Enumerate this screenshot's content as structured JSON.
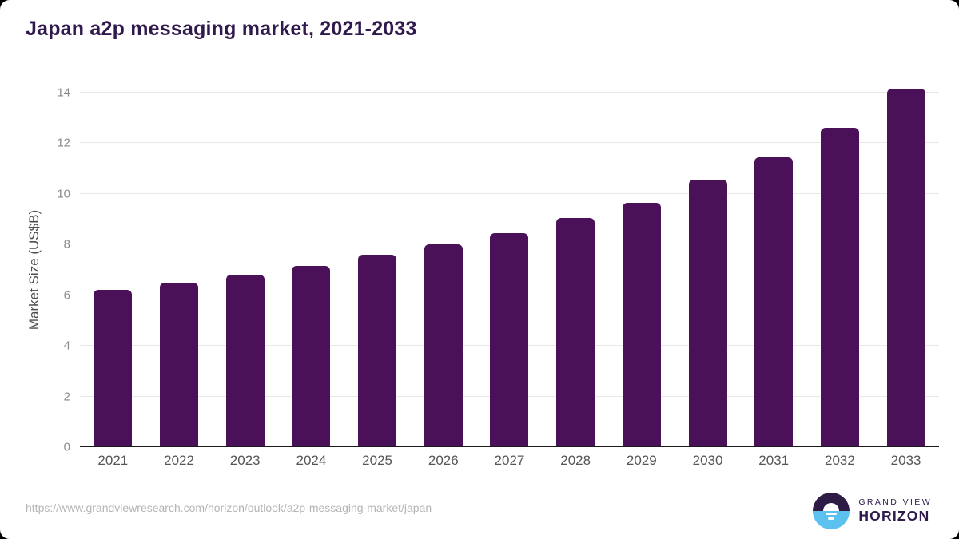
{
  "page": {
    "title": "Japan a2p messaging market, 2021-2033",
    "source_url": "https://www.grandviewresearch.com/horizon/outlook/a2p-messaging-market/japan"
  },
  "brand": {
    "name_top": "GRAND VIEW",
    "name_bottom": "HORIZON",
    "logo_icon": "horizon-sunrise-icon",
    "logo_purple": "#2e1c47",
    "logo_blue": "#5bc2ef"
  },
  "colors": {
    "bar": "#4a1158",
    "title_text": "#301a4d",
    "axis_line": "#1a1a1a",
    "gridline": "#e8e8e8",
    "y_tick_label": "#8a8a8a",
    "x_tick_label": "#565656",
    "url_text": "#b5b5b5"
  },
  "chart_data": {
    "type": "bar",
    "title": "Japan a2p messaging market, 2021-2033",
    "categories": [
      "2021",
      "2022",
      "2023",
      "2024",
      "2025",
      "2026",
      "2027",
      "2028",
      "2029",
      "2030",
      "2031",
      "2032",
      "2033"
    ],
    "values": [
      6.2,
      6.5,
      6.8,
      7.15,
      7.6,
      8.0,
      8.45,
      9.05,
      9.65,
      10.55,
      11.45,
      12.6,
      14.15
    ],
    "xlabel": "",
    "ylabel": "Market Size (US$B)",
    "ylim": [
      0,
      14
    ],
    "yticks": [
      0,
      2,
      4,
      6,
      8,
      10,
      12,
      14
    ],
    "grid": true,
    "legend_position": "none",
    "bar_color": "#4a1158"
  }
}
